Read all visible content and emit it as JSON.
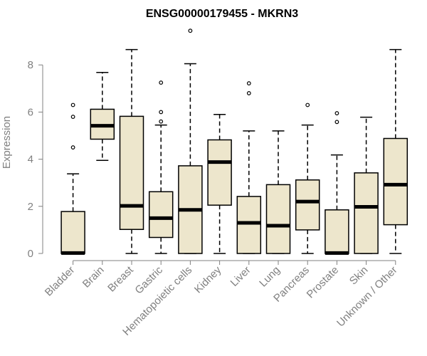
{
  "chart_data": {
    "type": "boxplot",
    "title": "ENSG00000179455 - MKRN3",
    "ylabel": "Expression",
    "xlabel": "",
    "ylim": [
      0,
      9.5
    ],
    "yticks": [
      0,
      2,
      4,
      6,
      8
    ],
    "box_color": "#EDE6CC",
    "axis_color": "#808080",
    "grid": false,
    "categories": [
      "Bladder",
      "Brain",
      "Breast",
      "Gastric",
      "Hematopoietic cells",
      "Kidney",
      "Liver",
      "Lung",
      "Pancreas",
      "Prostate",
      "Skin",
      "Unknown / Other"
    ],
    "series": [
      {
        "whisker_low": 0,
        "q1": 0,
        "median": 0.02,
        "q3": 1.78,
        "whisker_high": 3.38,
        "outliers": [
          4.5,
          5.8,
          6.3
        ]
      },
      {
        "whisker_low": 3.95,
        "q1": 4.85,
        "median": 5.42,
        "q3": 6.12,
        "whisker_high": 7.68,
        "outliers": []
      },
      {
        "whisker_low": 0,
        "q1": 1.02,
        "median": 2.02,
        "q3": 5.82,
        "whisker_high": 8.65,
        "outliers": []
      },
      {
        "whisker_low": 0,
        "q1": 0.68,
        "median": 1.5,
        "q3": 2.62,
        "whisker_high": 5.45,
        "outliers": [
          5.6,
          6.0,
          7.25
        ]
      },
      {
        "whisker_low": 0,
        "q1": 0,
        "median": 1.85,
        "q3": 3.72,
        "whisker_high": 8.05,
        "outliers": [
          9.45
        ]
      },
      {
        "whisker_low": 0,
        "q1": 2.05,
        "median": 3.88,
        "q3": 4.82,
        "whisker_high": 5.9,
        "outliers": []
      },
      {
        "whisker_low": 0,
        "q1": 0,
        "median": 1.3,
        "q3": 2.42,
        "whisker_high": 5.2,
        "outliers": [
          6.8,
          7.22
        ]
      },
      {
        "whisker_low": 0,
        "q1": 0,
        "median": 1.18,
        "q3": 2.92,
        "whisker_high": 5.2,
        "outliers": []
      },
      {
        "whisker_low": 0,
        "q1": 1.0,
        "median": 2.2,
        "q3": 3.12,
        "whisker_high": 5.45,
        "outliers": [
          6.3
        ]
      },
      {
        "whisker_low": 0,
        "q1": 0,
        "median": 0.02,
        "q3": 1.85,
        "whisker_high": 4.18,
        "outliers": [
          5.58,
          5.95
        ]
      },
      {
        "whisker_low": 0,
        "q1": 0,
        "median": 1.98,
        "q3": 3.42,
        "whisker_high": 5.78,
        "outliers": []
      },
      {
        "whisker_low": 0,
        "q1": 1.22,
        "median": 2.92,
        "q3": 4.88,
        "whisker_high": 8.65,
        "outliers": []
      }
    ]
  }
}
